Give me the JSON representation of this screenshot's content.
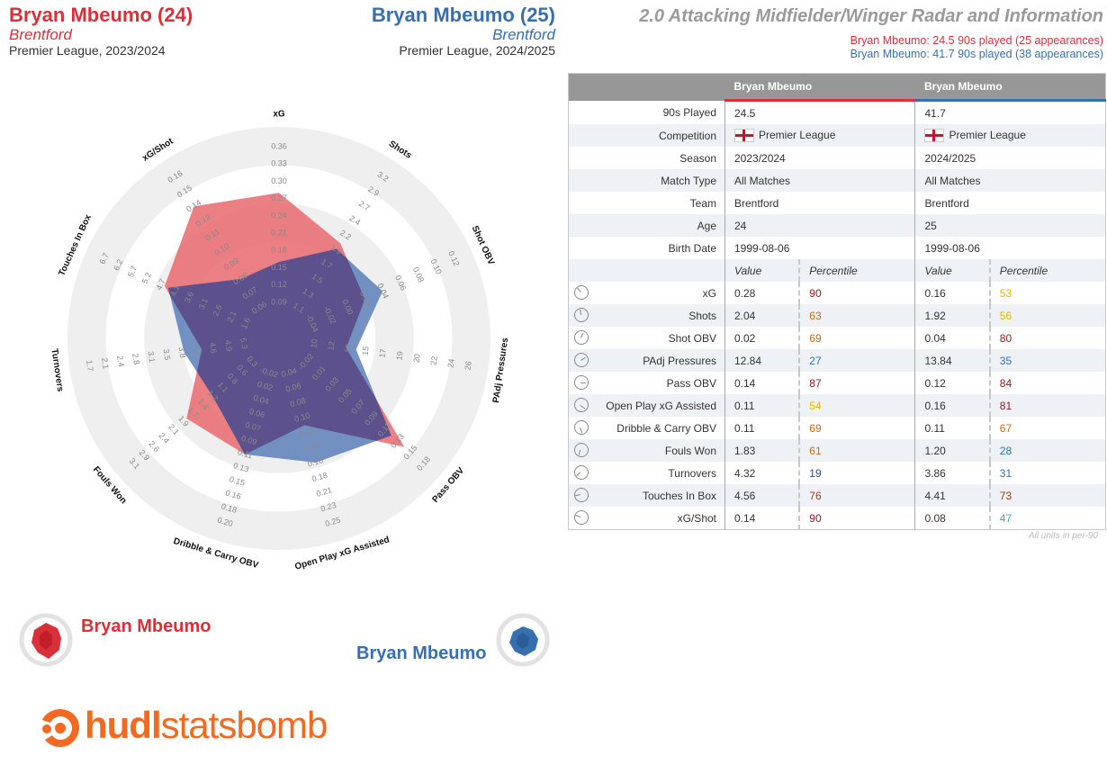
{
  "header": {
    "p1_name": "Bryan Mbeumo (24)",
    "p1_team": "Brentford",
    "p1_comp": "Premier League, 2023/2024",
    "p2_name": "Bryan Mbeumo (25)",
    "p2_team": "Brentford",
    "p2_comp": "Premier League, 2024/2025",
    "title": "2.0 Attacking Midfielder/Winger Radar and Information",
    "sub1": "Bryan Mbeumo: 24.5 90s played (25 appearances)",
    "sub2": "Bryan Mbeumo: 41.7 90s played (38 appearances)"
  },
  "colors": {
    "p1": "#d9303a",
    "p2": "#3670b0",
    "p1_fill": "#e8696f",
    "p2_fill": "#5b7fb8",
    "ring": "#efefef",
    "logo": "#f26a21"
  },
  "chart_data": {
    "type": "radar",
    "axes": [
      {
        "label": "xG",
        "ticks": [
          "0.09",
          "0.12",
          "0.15",
          "0.18",
          "0.21",
          "0.24",
          "0.27",
          "0.30",
          "0.33",
          "0.36"
        ]
      },
      {
        "label": "Shots",
        "ticks": [
          "1.1",
          "1.3",
          "1.5",
          "1.7",
          "1.9",
          "2.2",
          "2.4",
          "2.7",
          "2.9",
          "3.2"
        ]
      },
      {
        "label": "Shot OBV",
        "ticks": [
          "-0.04",
          "-0.02",
          "0.00",
          "0.02",
          "0.04",
          "0.06",
          "0.08",
          "0.10",
          "0.12"
        ]
      },
      {
        "label": "PAdj Pressures",
        "ticks": [
          "10",
          "12",
          "13",
          "15",
          "17",
          "19",
          "20",
          "22",
          "24",
          "26"
        ]
      },
      {
        "label": "Pass OBV",
        "ticks": [
          "-0.02",
          "0.01",
          "0.03",
          "0.05",
          "0.07",
          "0.09",
          "0.11",
          "0.13",
          "0.15",
          "0.18"
        ]
      },
      {
        "label": "Open Play xG Assisted",
        "ticks": [
          "0.04",
          "0.06",
          "0.08",
          "0.10",
          "0.12",
          "0.14",
          "0.16",
          "0.18",
          "0.21",
          "0.23",
          "0.25"
        ]
      },
      {
        "label": "Dribble & Carry OBV",
        "ticks": [
          "-0.02",
          "0.02",
          "0.04",
          "0.06",
          "0.07",
          "0.09",
          "0.11",
          "0.13",
          "0.15",
          "0.16",
          "0.18",
          "0.20"
        ]
      },
      {
        "label": "Fouls Won",
        "ticks": [
          "0.3",
          "0.6",
          "0.8",
          "1.1",
          "1.2",
          "1.4",
          "1.7",
          "1.9",
          "2.1",
          "2.4",
          "2.6",
          "2.9",
          "3.1"
        ]
      },
      {
        "label": "Turnovers",
        "ticks": [
          "5.3",
          "4.9",
          "4.6",
          "4.2",
          "3.8",
          "3.5",
          "3.1",
          "2.8",
          "2.4",
          "2.1",
          "1.7"
        ]
      },
      {
        "label": "Touches In Box",
        "ticks": [
          "1.6",
          "2.1",
          "2.6",
          "3.1",
          "3.6",
          "4.1",
          "4.7",
          "5.2",
          "5.7",
          "6.2",
          "6.7"
        ]
      },
      {
        "label": "xG/Shot",
        "ticks": [
          "0.06",
          "0.07",
          "0.08",
          "0.09",
          "0.10",
          "0.11",
          "0.13",
          "0.14",
          "0.15",
          "0.16"
        ]
      }
    ],
    "series": [
      {
        "name": "Bryan Mbeumo",
        "values": [
          0.28,
          2.04,
          0.02,
          12.84,
          0.14,
          0.11,
          0.11,
          1.83,
          4.32,
          4.56,
          0.14
        ]
      },
      {
        "name": "Bryan Mbeumo",
        "values": [
          0.16,
          1.92,
          0.04,
          13.84,
          0.12,
          0.16,
          0.11,
          1.2,
          3.86,
          4.41,
          0.08
        ]
      }
    ]
  },
  "legend": {
    "p1": "Bryan Mbeumo",
    "p2": "Bryan Mbeumo"
  },
  "logo": {
    "bold": "hudl",
    "light": "statsbomb"
  },
  "table": {
    "col1": "Bryan Mbeumo",
    "col2": "Bryan Mbeumo",
    "info": [
      {
        "label": "90s Played",
        "a": "24.5",
        "b": "41.7"
      },
      {
        "label": "Competition",
        "a": "Premier League",
        "b": "Premier League",
        "flag": true
      },
      {
        "label": "Season",
        "a": "2023/2024",
        "b": "2024/2025"
      },
      {
        "label": "Match Type",
        "a": "All Matches",
        "b": "All Matches"
      },
      {
        "label": "Team",
        "a": "Brentford",
        "b": "Brentford"
      },
      {
        "label": "Age",
        "a": "24",
        "b": "25"
      },
      {
        "label": "Birth Date",
        "a": "1999-08-06",
        "b": "1999-08-06"
      }
    ],
    "value_hdr": "Value",
    "pct_hdr": "Percentile",
    "metrics": [
      {
        "label": "xG",
        "a": "0.28",
        "ap": "90",
        "apc": "#8b1a1a",
        "b": "0.16",
        "bp": "53",
        "bpc": "#e6b800"
      },
      {
        "label": "Shots",
        "a": "2.04",
        "ap": "63",
        "apc": "#c86a1a",
        "b": "1.92",
        "bp": "56",
        "bpc": "#e6b800"
      },
      {
        "label": "Shot OBV",
        "a": "0.02",
        "ap": "69",
        "apc": "#c86a1a",
        "b": "0.04",
        "bp": "80",
        "bpc": "#8b1a1a"
      },
      {
        "label": "PAdj Pressures",
        "a": "12.84",
        "ap": "27",
        "apc": "#3670b0",
        "b": "13.84",
        "bp": "35",
        "bpc": "#3670b0"
      },
      {
        "label": "Pass OBV",
        "a": "0.14",
        "ap": "87",
        "apc": "#8b1a1a",
        "b": "0.12",
        "bp": "84",
        "bpc": "#8b1a1a"
      },
      {
        "label": "Open Play xG Assisted",
        "a": "0.11",
        "ap": "54",
        "apc": "#e6b800",
        "b": "0.16",
        "bp": "81",
        "bpc": "#8b1a1a"
      },
      {
        "label": "Dribble & Carry OBV",
        "a": "0.11",
        "ap": "69",
        "apc": "#c86a1a",
        "b": "0.11",
        "bp": "67",
        "bpc": "#c86a1a"
      },
      {
        "label": "Fouls Won",
        "a": "1.83",
        "ap": "61",
        "apc": "#c86a1a",
        "b": "1.20",
        "bp": "28",
        "bpc": "#3670b0"
      },
      {
        "label": "Turnovers",
        "a": "4.32",
        "ap": "19",
        "apc": "#2a4f8c",
        "b": "3.86",
        "bp": "31",
        "bpc": "#3670b0"
      },
      {
        "label": "Touches In Box",
        "a": "4.56",
        "ap": "76",
        "apc": "#a33a1a",
        "b": "4.41",
        "bp": "73",
        "bpc": "#a33a1a"
      },
      {
        "label": "xG/Shot",
        "a": "0.14",
        "ap": "90",
        "apc": "#8b1a1a",
        "b": "0.08",
        "bp": "47",
        "bpc": "#4aa3b5"
      }
    ],
    "footnote": "All units in per-90"
  }
}
